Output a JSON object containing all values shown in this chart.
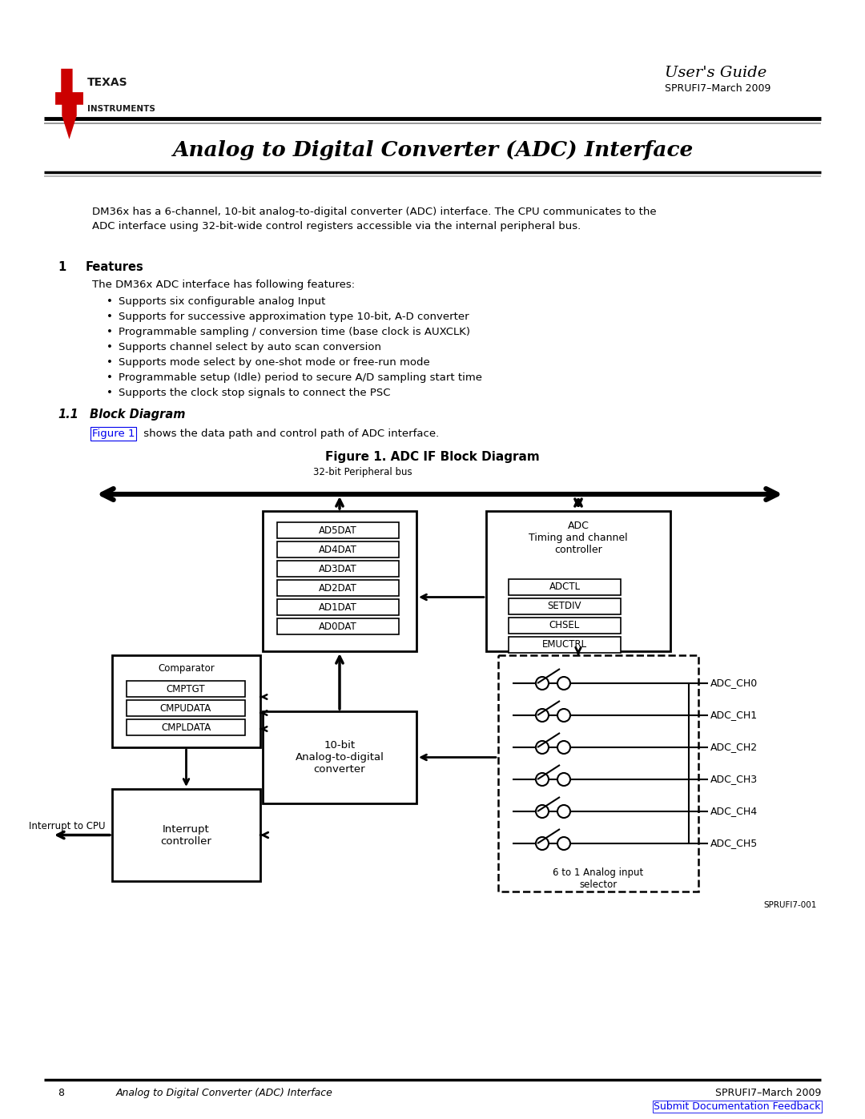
{
  "title": "Analog to Digital Converter (ADC) Interface",
  "users_guide_text": "User's Guide",
  "sprufi7_header": "SPRUFI7–March 2009",
  "description_line1": "DM36x has a 6-channel, 10-bit analog-to-digital converter (ADC) interface. The CPU communicates to the",
  "description_line2": "ADC interface using 32-bit-wide control registers accessible via the internal peripheral bus.",
  "sec1_num": "1",
  "sec1_title": "Features",
  "features_intro": "The DM36x ADC interface has following features:",
  "features": [
    "Supports six configurable analog Input",
    "Supports for successive approximation type 10-bit, A-D converter",
    "Programmable sampling / conversion time (base clock is AUXCLK)",
    "Supports channel select by auto scan conversion",
    "Supports mode select by one-shot mode or free-run mode",
    "Programmable setup (Idle) period to secure A/D sampling start time",
    "Supports the clock stop signals to connect the PSC"
  ],
  "sec11_num": "1.1",
  "sec11_title": "Block Diagram",
  "block_ref_pre": "Figure 1",
  "block_ref_post": " shows the data path and control path of ADC interface.",
  "figure_title": "Figure 1. ADC IF Block Diagram",
  "peripheral_bus_label": "32-bit Peripheral bus",
  "adc_ctrl_title": "ADC\nTiming and channel\ncontroller",
  "adc_regs": [
    "ADCTL",
    "SETDIV",
    "CHSEL",
    "EMUCTRL"
  ],
  "data_regs": [
    "AD5DAT",
    "AD4DAT",
    "AD3DAT",
    "AD2DAT",
    "AD1DAT",
    "AD0DAT"
  ],
  "comparator_label": "Comparator",
  "comp_regs": [
    "CMPTGT",
    "CMPUDATA",
    "CMPLDATA"
  ],
  "converter_label": "10-bit\nAnalog-to-digital\nconverter",
  "interrupt_label": "Interrupt\ncontroller",
  "interrupt_cpu_label": "Interrupt to CPU",
  "selector_label": "6 to 1 Analog input\nselector",
  "adc_channels": [
    "ADC_CH0",
    "ADC_CH1",
    "ADC_CH2",
    "ADC_CH3",
    "ADC_CH4",
    "ADC_CH5"
  ],
  "figure_id": "SPRUFI7-001",
  "footer_page": "8",
  "footer_center": "Analog to Digital Converter (ADC) Interface",
  "footer_right": "SPRUFI7–March 2009",
  "footer_link": "Submit Documentation Feedback",
  "bg_color": "#ffffff",
  "text_color": "#000000",
  "link_color": "#0000ee",
  "red_color": "#cc0000"
}
